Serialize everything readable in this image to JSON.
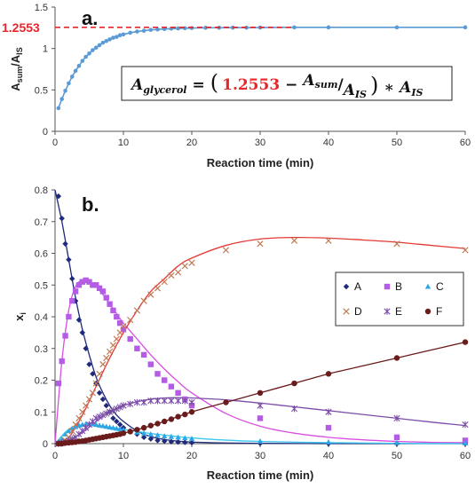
{
  "chart_data": [
    {
      "panel": "a.",
      "type": "line",
      "xlabel": "Reaction time (min)",
      "ylabel_main": "A",
      "ylabel_sub1": "sum",
      "ylabel_slash": "/A",
      "ylabel_sub2": "IS",
      "xlim": [
        0,
        60
      ],
      "ylim": [
        0,
        1.5
      ],
      "xticks": [
        "0",
        "10",
        "20",
        "30",
        "40",
        "50",
        "60"
      ],
      "yticks": [
        "0",
        "0.5",
        "1",
        "1.5"
      ],
      "series": [
        {
          "color": "#5B9BD5",
          "x": [
            0.5,
            1,
            1.5,
            2,
            2.5,
            3,
            3.5,
            4,
            4.5,
            5,
            5.5,
            6,
            6.5,
            7,
            7.5,
            8,
            8.5,
            9,
            9.5,
            10,
            11,
            12,
            13,
            14,
            15,
            16,
            17,
            18,
            19,
            20,
            22,
            24,
            26,
            28,
            30,
            35,
            40,
            50,
            60
          ],
          "y": [
            0.28,
            0.39,
            0.49,
            0.58,
            0.66,
            0.73,
            0.79,
            0.85,
            0.9,
            0.94,
            0.98,
            1.01,
            1.04,
            1.07,
            1.09,
            1.11,
            1.13,
            1.14,
            1.16,
            1.17,
            1.19,
            1.205,
            1.215,
            1.225,
            1.23,
            1.235,
            1.24,
            1.243,
            1.245,
            1.247,
            1.25,
            1.251,
            1.252,
            1.252,
            1.253,
            1.2553,
            1.2553,
            1.2553,
            1.2553
          ]
        }
      ],
      "reference_line": {
        "y": 1.2553,
        "label": "1.2553",
        "color": "#E8262A"
      },
      "equation": {
        "lhs_main": "A",
        "lhs_sub": "glycerol",
        "equals": "=",
        "open_paren": "(",
        "constant": "1.2553",
        "minus": "−",
        "frac_main": "A",
        "frac_sub1": "sum",
        "frac_slash": "/",
        "frac_main2": "A",
        "frac_sub2": "IS",
        "close_paren": ")",
        "times": "∗",
        "tail_main": "A",
        "tail_sub": "IS",
        "constant_color": "#E8262A"
      }
    },
    {
      "panel": "b.",
      "type": "scatter",
      "xlabel": "Reaction time (min)",
      "ylabel_main": "x",
      "ylabel_sub": "i",
      "xlim": [
        0,
        60
      ],
      "ylim": [
        0,
        0.8
      ],
      "xticks": [
        "0",
        "10",
        "20",
        "30",
        "40",
        "50",
        "60"
      ],
      "yticks": [
        "0",
        "0.1",
        "0.2",
        "0.3",
        "0.4",
        "0.5",
        "0.6",
        "0.7",
        "0.8"
      ],
      "legend_position": "center-right",
      "series": [
        {
          "name": "A",
          "marker": "diamond",
          "color": "#1F2A7A",
          "x": [
            0.5,
            1,
            1.5,
            2,
            2.5,
            3,
            3.5,
            4,
            4.5,
            5,
            5.5,
            6,
            6.5,
            7,
            7.5,
            8,
            8.5,
            9,
            9.5,
            10,
            11,
            12,
            13,
            14,
            15,
            16,
            17,
            18,
            19,
            20,
            30,
            40,
            50,
            60
          ],
          "y": [
            0.78,
            0.71,
            0.63,
            0.58,
            0.52,
            0.45,
            0.39,
            0.35,
            0.3,
            0.25,
            0.22,
            0.19,
            0.16,
            0.14,
            0.12,
            0.1,
            0.08,
            0.07,
            0.06,
            0.05,
            0.04,
            0.03,
            0.02,
            0.015,
            0.01,
            0.008,
            0.006,
            0.005,
            0.004,
            0.003,
            0.001,
            0.0,
            0.0,
            0.0
          ],
          "fit_x": [
            0,
            1,
            2,
            3,
            4,
            5,
            6,
            7,
            8,
            9,
            10,
            12,
            14,
            16,
            18,
            20,
            25,
            30,
            40,
            50,
            60
          ],
          "fit_y": [
            0.8,
            0.7,
            0.58,
            0.46,
            0.36,
            0.28,
            0.21,
            0.16,
            0.12,
            0.09,
            0.07,
            0.04,
            0.022,
            0.013,
            0.008,
            0.005,
            0.002,
            0.001,
            0.0,
            0.0,
            0.0
          ],
          "fit_color": "#1F2A7A"
        },
        {
          "name": "B",
          "marker": "square",
          "color": "#B45CE6",
          "x": [
            0.5,
            1,
            1.5,
            2,
            2.5,
            3,
            3.5,
            4,
            4.5,
            5,
            5.5,
            6,
            6.5,
            7,
            7.5,
            8,
            8.5,
            9,
            9.5,
            10,
            11,
            12,
            13,
            14,
            15,
            16,
            17,
            18,
            19,
            20,
            30,
            40,
            50,
            60
          ],
          "y": [
            0.19,
            0.26,
            0.34,
            0.4,
            0.45,
            0.48,
            0.5,
            0.51,
            0.515,
            0.51,
            0.5,
            0.5,
            0.49,
            0.48,
            0.46,
            0.44,
            0.42,
            0.4,
            0.38,
            0.36,
            0.33,
            0.3,
            0.28,
            0.25,
            0.22,
            0.2,
            0.18,
            0.16,
            0.14,
            0.12,
            0.08,
            0.05,
            0.02,
            0.01
          ],
          "fit_x": [
            0,
            1,
            2,
            3,
            4,
            5,
            6,
            7,
            8,
            9,
            10,
            12,
            14,
            16,
            18,
            20,
            25,
            30,
            35,
            40,
            45,
            50,
            55,
            60
          ],
          "fit_y": [
            0.0,
            0.26,
            0.42,
            0.495,
            0.515,
            0.51,
            0.495,
            0.47,
            0.44,
            0.41,
            0.38,
            0.33,
            0.28,
            0.235,
            0.195,
            0.16,
            0.095,
            0.055,
            0.033,
            0.02,
            0.012,
            0.007,
            0.004,
            0.003
          ],
          "fit_color": "#D84FE0"
        },
        {
          "name": "C",
          "marker": "triangle",
          "color": "#2EA7E6",
          "x": [
            0.5,
            1,
            1.5,
            2,
            2.5,
            3,
            3.5,
            4,
            4.5,
            5,
            5.5,
            6,
            6.5,
            7,
            7.5,
            8,
            8.5,
            9,
            9.5,
            10,
            11,
            12,
            13,
            14,
            15,
            16,
            17,
            18,
            19,
            20,
            30,
            40,
            50,
            60
          ],
          "y": [
            0.005,
            0.015,
            0.03,
            0.04,
            0.048,
            0.053,
            0.057,
            0.06,
            0.062,
            0.063,
            0.062,
            0.06,
            0.058,
            0.056,
            0.054,
            0.052,
            0.05,
            0.048,
            0.046,
            0.044,
            0.04,
            0.036,
            0.033,
            0.03,
            0.027,
            0.024,
            0.022,
            0.02,
            0.018,
            0.016,
            0.008,
            0.005,
            0.003,
            0.002
          ],
          "fit_x": [
            0,
            2,
            4,
            6,
            8,
            10,
            12,
            14,
            16,
            18,
            20,
            25,
            30,
            40,
            50,
            60
          ],
          "fit_y": [
            0.0,
            0.045,
            0.06,
            0.058,
            0.052,
            0.045,
            0.038,
            0.032,
            0.027,
            0.022,
            0.018,
            0.011,
            0.007,
            0.003,
            0.001,
            0.0
          ],
          "fit_color": "#38C8F0"
        },
        {
          "name": "D",
          "marker": "x",
          "color": "#C07A55",
          "x": [
            0.5,
            1,
            1.5,
            2,
            2.5,
            3,
            3.5,
            4,
            4.5,
            5,
            5.5,
            6,
            6.5,
            7,
            7.5,
            8,
            8.5,
            9,
            9.5,
            10,
            11,
            12,
            13,
            14,
            15,
            16,
            17,
            18,
            19,
            20,
            25,
            30,
            35,
            40,
            50,
            60
          ],
          "y": [
            0.0,
            0.005,
            0.01,
            0.02,
            0.04,
            0.06,
            0.08,
            0.1,
            0.12,
            0.14,
            0.16,
            0.19,
            0.22,
            0.25,
            0.27,
            0.29,
            0.31,
            0.33,
            0.35,
            0.37,
            0.39,
            0.42,
            0.45,
            0.47,
            0.49,
            0.51,
            0.53,
            0.54,
            0.56,
            0.57,
            0.61,
            0.63,
            0.64,
            0.64,
            0.63,
            0.61
          ],
          "fit_x": [
            0,
            2,
            4,
            6,
            8,
            10,
            12,
            14,
            16,
            18,
            20,
            25,
            30,
            35,
            40,
            45,
            50,
            55,
            60
          ],
          "fit_y": [
            0.0,
            0.02,
            0.09,
            0.18,
            0.27,
            0.35,
            0.42,
            0.48,
            0.52,
            0.56,
            0.585,
            0.625,
            0.645,
            0.65,
            0.648,
            0.642,
            0.635,
            0.625,
            0.615
          ],
          "fit_color": "#E53935"
        },
        {
          "name": "E",
          "marker": "asterisk",
          "color": "#7C4DA8",
          "x": [
            0.5,
            1,
            1.5,
            2,
            2.5,
            3,
            3.5,
            4,
            4.5,
            5,
            5.5,
            6,
            6.5,
            7,
            7.5,
            8,
            8.5,
            9,
            9.5,
            10,
            11,
            12,
            13,
            14,
            15,
            16,
            17,
            18,
            19,
            20,
            30,
            35,
            40,
            50,
            60
          ],
          "y": [
            0.0,
            0.002,
            0.005,
            0.01,
            0.015,
            0.02,
            0.03,
            0.04,
            0.05,
            0.06,
            0.07,
            0.08,
            0.085,
            0.09,
            0.095,
            0.1,
            0.105,
            0.11,
            0.115,
            0.12,
            0.125,
            0.13,
            0.13,
            0.135,
            0.135,
            0.135,
            0.135,
            0.135,
            0.135,
            0.13,
            0.12,
            0.11,
            0.1,
            0.08,
            0.06
          ],
          "fit_x": [
            0,
            2,
            4,
            6,
            8,
            10,
            12,
            14,
            16,
            18,
            20,
            25,
            30,
            35,
            40,
            45,
            50,
            55,
            60
          ],
          "fit_y": [
            0.0,
            0.01,
            0.035,
            0.07,
            0.1,
            0.12,
            0.132,
            0.14,
            0.144,
            0.145,
            0.144,
            0.138,
            0.128,
            0.116,
            0.104,
            0.092,
            0.08,
            0.068,
            0.057
          ],
          "fit_color": "#7C4DA8"
        },
        {
          "name": "F",
          "marker": "circle",
          "color": "#6A1B1B",
          "x": [
            0.5,
            1,
            1.5,
            2,
            2.5,
            3,
            3.5,
            4,
            4.5,
            5,
            5.5,
            6,
            6.5,
            7,
            7.5,
            8,
            8.5,
            9,
            9.5,
            10,
            11,
            12,
            13,
            14,
            15,
            16,
            17,
            18,
            19,
            20,
            25,
            30,
            35,
            40,
            50,
            60
          ],
          "y": [
            0.0,
            0.0,
            0.002,
            0.003,
            0.004,
            0.005,
            0.007,
            0.008,
            0.01,
            0.012,
            0.014,
            0.016,
            0.018,
            0.02,
            0.022,
            0.024,
            0.026,
            0.028,
            0.03,
            0.033,
            0.038,
            0.044,
            0.05,
            0.057,
            0.063,
            0.07,
            0.077,
            0.085,
            0.092,
            0.1,
            0.13,
            0.16,
            0.19,
            0.22,
            0.27,
            0.32
          ],
          "fit_x": [
            0,
            5,
            10,
            15,
            20,
            25,
            30,
            35,
            40,
            45,
            50,
            55,
            60
          ],
          "fit_y": [
            0.0,
            0.012,
            0.033,
            0.063,
            0.1,
            0.13,
            0.16,
            0.19,
            0.22,
            0.245,
            0.27,
            0.295,
            0.32
          ],
          "fit_color": "#6A1B1B"
        }
      ]
    }
  ]
}
